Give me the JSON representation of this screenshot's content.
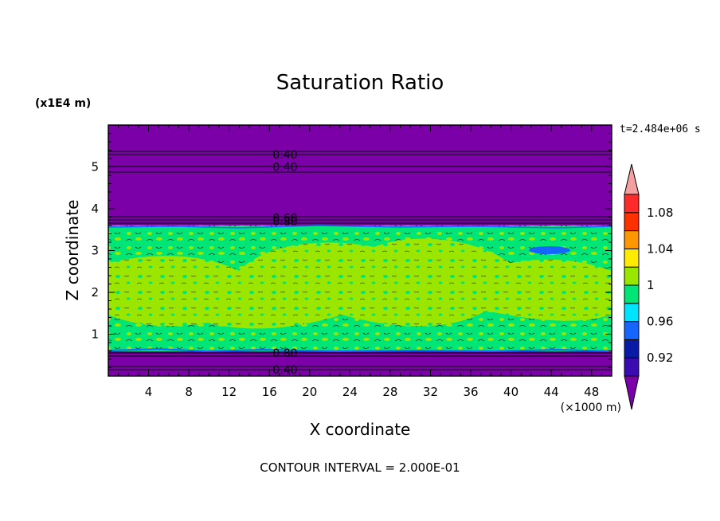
{
  "chart_data": {
    "type": "heatmap",
    "title": "Saturation Ratio",
    "xlabel": "X coordinate",
    "ylabel": "Z coordinate",
    "x_unit_label": "(×1000 m)",
    "y_unit_label": "(x1E4 m)",
    "time_label": "t=2.484e+06 s",
    "footer": "CONTOUR INTERVAL = 2.000E-01",
    "xlim": [
      0,
      50
    ],
    "ylim": [
      0,
      6
    ],
    "x_ticks": [
      "4",
      "8",
      "12",
      "16",
      "20",
      "24",
      "28",
      "32",
      "36",
      "40",
      "44",
      "48"
    ],
    "y_ticks": [
      "1",
      "2",
      "3",
      "4",
      "5"
    ],
    "colorbar": {
      "colors": [
        "#7b00a8",
        "#3a0bb0",
        "#0a1aa8",
        "#1565ff",
        "#00e5ff",
        "#00e676",
        "#9be600",
        "#ffeb00",
        "#ff9800",
        "#ff3000",
        "#ff2a2a",
        "#f5a0a0"
      ],
      "tick_labels": [
        "0.92",
        "0.96",
        "1",
        "1.04",
        "1.08"
      ]
    },
    "regions": [
      {
        "z_range": [
          0,
          0.6
        ],
        "value_class": "< 0.90",
        "color": "#7b00a8"
      },
      {
        "z_range": [
          0.6,
          3.6
        ],
        "value_class": "0.98 – 1.00",
        "color": "#00e676"
      },
      {
        "z_range": [
          1.2,
          3.0
        ],
        "value_class": "1.00 – 1.02",
        "color": "#9be600"
      },
      {
        "z_range": [
          3.6,
          6.0
        ],
        "value_class": "< 0.90",
        "color": "#7b00a8"
      }
    ],
    "contour_labels": [
      {
        "text": "0.40",
        "z": 5.3
      },
      {
        "text": "0.40",
        "z": 5.0
      },
      {
        "text": "0.60",
        "z": 3.78
      },
      {
        "text": "0.80",
        "z": 3.7
      },
      {
        "text": "0.80",
        "z": 0.55
      },
      {
        "text": "0.40",
        "z": 0.15
      }
    ]
  }
}
